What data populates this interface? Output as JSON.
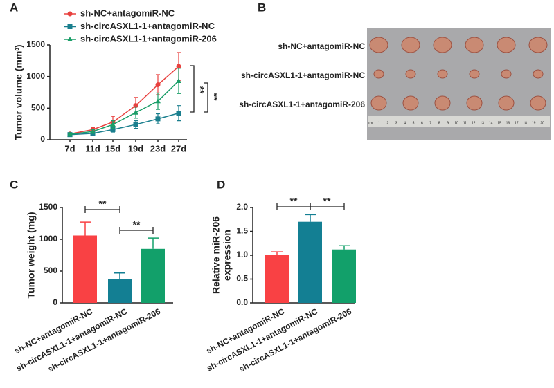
{
  "chart_data": [
    {
      "type": "line",
      "label": "A",
      "ylabel": "Tumor volume (mm³)",
      "categories": [
        "7d",
        "11d",
        "15d",
        "19d",
        "23d",
        "27d"
      ],
      "ylim": [
        0,
        1500
      ],
      "yticks": [
        0,
        500,
        1000,
        1500
      ],
      "series": [
        {
          "name": "sh-NC+antagomiR-NC",
          "color": "#e8413f",
          "marker": "circle",
          "values": [
            90,
            160,
            280,
            540,
            870,
            1160
          ],
          "errors": [
            10,
            30,
            90,
            130,
            160,
            220
          ]
        },
        {
          "name": "sh-circASXL1-1+antagomiR-NC",
          "color": "#1a7f8e",
          "marker": "square",
          "values": [
            80,
            100,
            160,
            240,
            330,
            420
          ],
          "errors": [
            5,
            20,
            40,
            60,
            80,
            120
          ]
        },
        {
          "name": "sh-circASXL1-1+antagomiR-206",
          "color": "#1a9e68",
          "marker": "triangle",
          "values": [
            85,
            130,
            240,
            430,
            610,
            930
          ],
          "errors": [
            10,
            30,
            60,
            90,
            130,
            200
          ]
        }
      ],
      "annotations": [
        "**",
        "**"
      ]
    },
    {
      "type": "bar",
      "label": "C",
      "ylabel": "Tumor weight (mg)",
      "categories": [
        "sh-NC+antagomiR-NC",
        "sh-circASXL1-1+antagomiR-NC",
        "sh-circASXL1-1+antagomiR-206"
      ],
      "colors": [
        "#f94144",
        "#137f93",
        "#12a06a"
      ],
      "values": [
        1060,
        370,
        850
      ],
      "errors": [
        210,
        100,
        170
      ],
      "ylim": [
        0,
        1500
      ],
      "yticks": [
        0,
        500,
        1000,
        1500
      ],
      "annotations": [
        "**",
        "**"
      ]
    },
    {
      "type": "bar",
      "label": "D",
      "ylabel_lines": [
        "Relative miR-206",
        "expression"
      ],
      "categories": [
        "sh-NC+antagomiR-NC",
        "sh-circASXL1-1+antagomiR-NC",
        "sh-circASXL1-1+antagomiR-206"
      ],
      "colors": [
        "#f94144",
        "#137f93",
        "#12a06a"
      ],
      "values": [
        1.0,
        1.7,
        1.12
      ],
      "errors": [
        0.07,
        0.15,
        0.08
      ],
      "ylim": [
        0,
        2.0
      ],
      "yticks": [
        {
          "value": 0,
          "label": "0.0"
        },
        0.5,
        {
          "value": 1,
          "label": "1.0"
        },
        1.5,
        {
          "value": 2,
          "label": "2.0"
        }
      ],
      "annotations": [
        "**",
        "**"
      ]
    }
  ],
  "photo": {
    "label": "B",
    "rows": [
      "sh-NC+antagomiR-NC",
      "sh-circASXL1-1+antagomiR-NC",
      "sh-circASXL1-1+antagomiR-206"
    ],
    "ruler": [
      "cm",
      "1",
      "2",
      "3",
      "4",
      "5",
      "6",
      "7",
      "8",
      "9",
      "10",
      "11",
      "12",
      "13",
      "14",
      "15",
      "16",
      "17",
      "18",
      "19",
      "20"
    ]
  }
}
